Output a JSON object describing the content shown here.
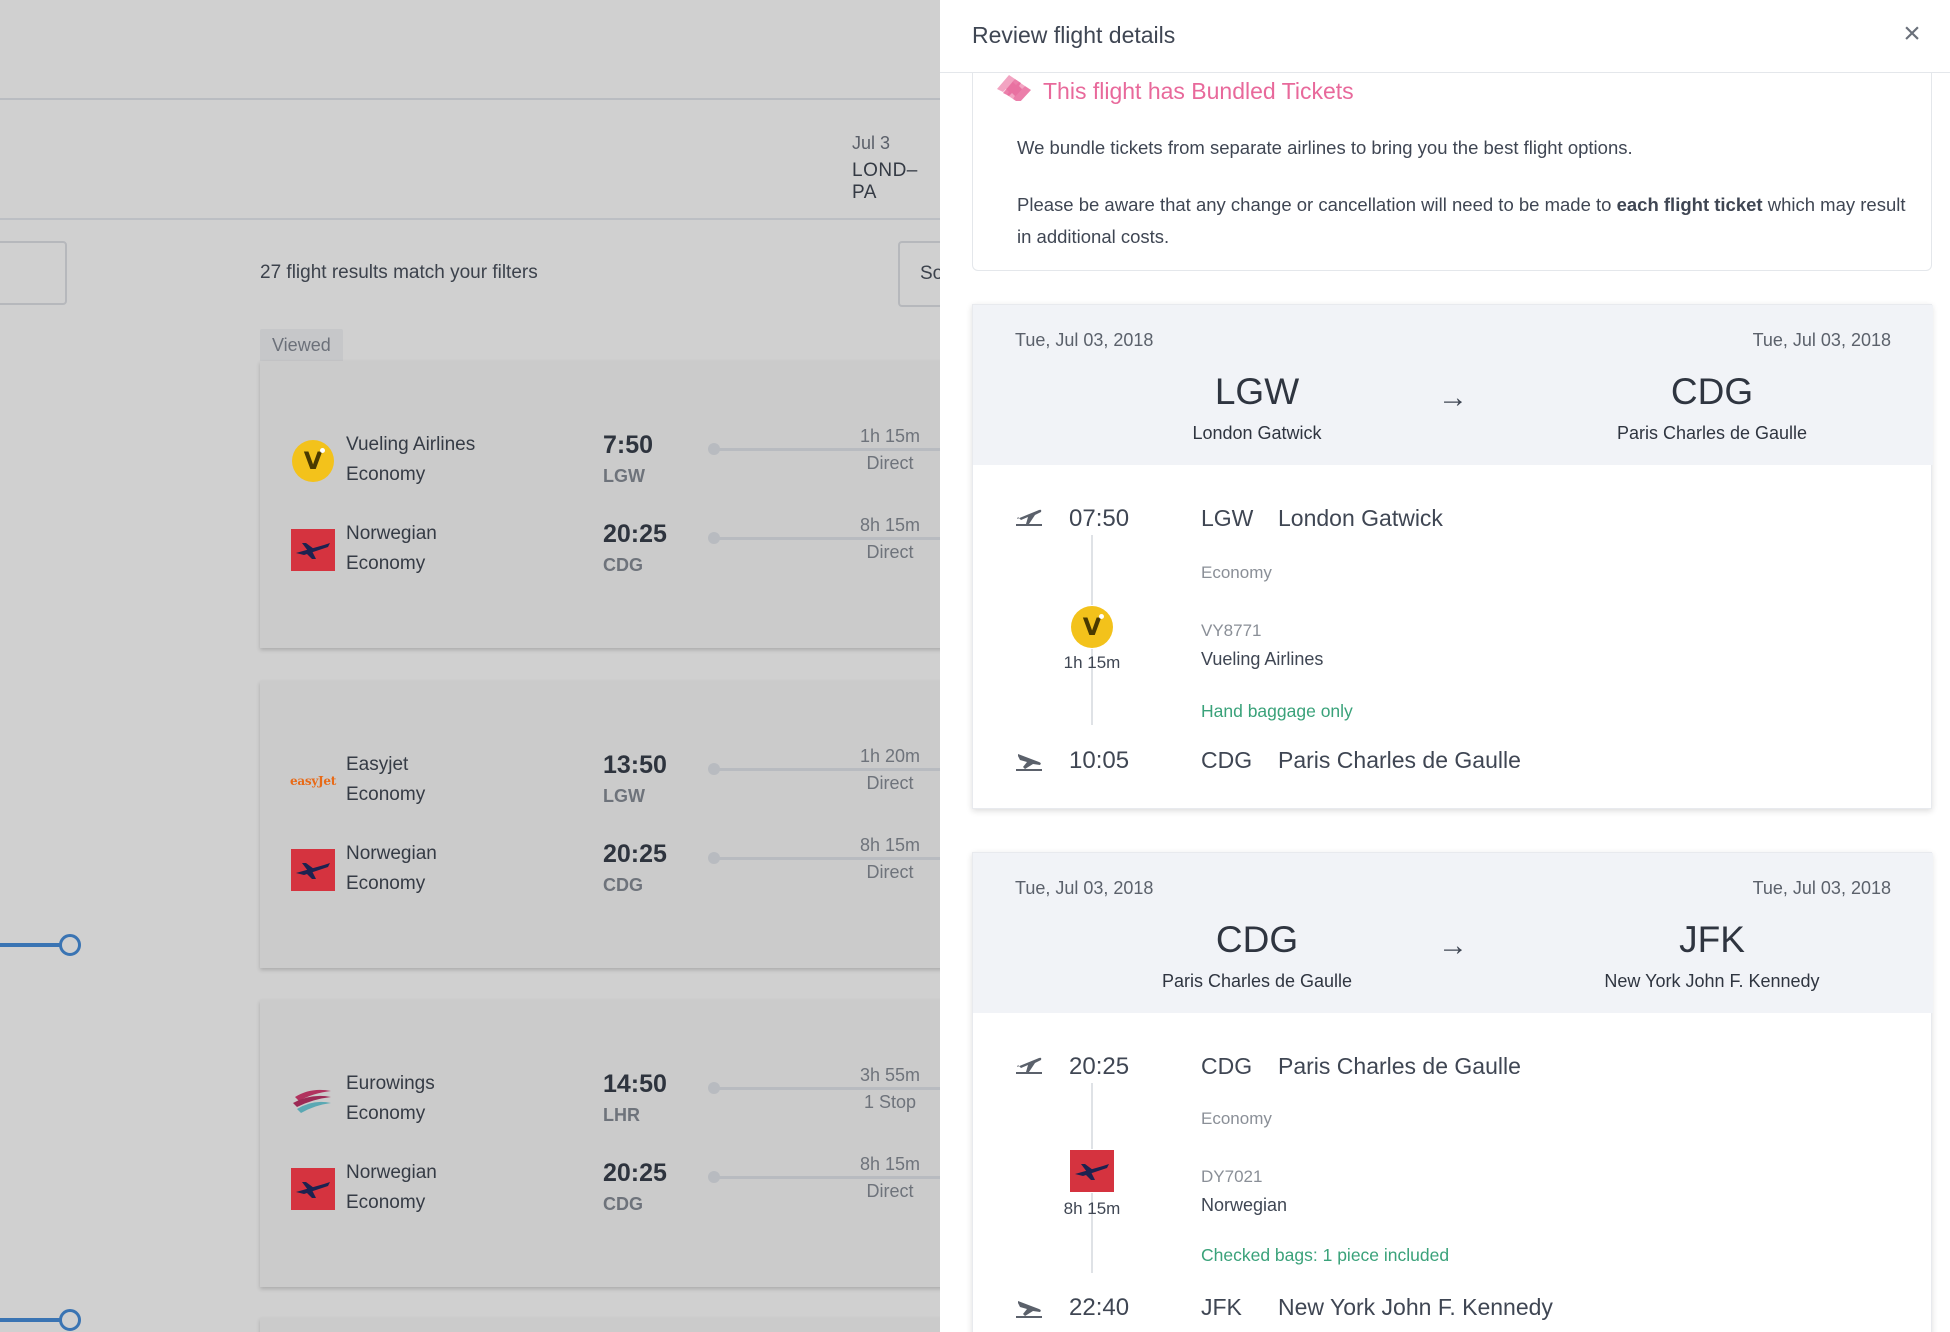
{
  "background": {
    "trip_date": "Jul 3",
    "trip_route": "LOND–PA",
    "results_count": "27 flight results match your filters",
    "sort_label": "So",
    "viewed_label": "Viewed",
    "slider_color": "#3a74b3",
    "cards": [
      {
        "legs": [
          {
            "logo": "vueling",
            "airline": "Vueling Airlines",
            "cabin": "Economy",
            "time": "7:50",
            "airport": "LGW",
            "duration": "1h 15m",
            "stops": "Direct"
          },
          {
            "logo": "norwegian",
            "airline": "Norwegian",
            "cabin": "Economy",
            "time": "20:25",
            "airport": "CDG",
            "duration": "8h 15m",
            "stops": "Direct"
          }
        ]
      },
      {
        "legs": [
          {
            "logo": "easyjet",
            "logo_text": "easyJet",
            "airline": "Easyjet",
            "cabin": "Economy",
            "time": "13:50",
            "airport": "LGW",
            "duration": "1h 20m",
            "stops": "Direct"
          },
          {
            "logo": "norwegian",
            "airline": "Norwegian",
            "cabin": "Economy",
            "time": "20:25",
            "airport": "CDG",
            "duration": "8h 15m",
            "stops": "Direct"
          }
        ]
      },
      {
        "legs": [
          {
            "logo": "eurowings",
            "airline": "Eurowings",
            "cabin": "Economy",
            "time": "14:50",
            "airport": "LHR",
            "duration": "3h 55m",
            "stops": "1 Stop"
          },
          {
            "logo": "norwegian",
            "airline": "Norwegian",
            "cabin": "Economy",
            "time": "20:25",
            "airport": "CDG",
            "duration": "8h 15m",
            "stops": "Direct"
          }
        ]
      }
    ]
  },
  "drawer": {
    "title": "Review flight details",
    "close_icon": "×",
    "bundle": {
      "title": "This flight has Bundled Tickets",
      "p1": "We bundle tickets from separate airlines to bring you the best flight options.",
      "p2_before": "Please be aware that any change or cancellation will need to be made to ",
      "p2_bold": "each flight ticket",
      "p2_after": " which may result in additional costs.",
      "accent_color": "#e8699b"
    },
    "segments": [
      {
        "date_from": "Tue, Jul 03, 2018",
        "date_to": "Tue, Jul 03, 2018",
        "from_code": "LGW",
        "from_name": "London Gatwick",
        "to_code": "CDG",
        "to_name": "Paris Charles de Gaulle",
        "arrow": "→",
        "depart_time": "07:50",
        "depart_code": "LGW",
        "depart_name": "London Gatwick",
        "cabin": "Economy",
        "airline_logo": "vueling",
        "duration": "1h 15m",
        "flight_no": "VY8771",
        "airline": "Vueling Airlines",
        "baggage": "Hand baggage only",
        "arrive_time": "10:05",
        "arrive_code": "CDG",
        "arrive_name": "Paris Charles de Gaulle"
      },
      {
        "date_from": "Tue, Jul 03, 2018",
        "date_to": "Tue, Jul 03, 2018",
        "from_code": "CDG",
        "from_name": "Paris Charles de Gaulle",
        "to_code": "JFK",
        "to_name": "New York John F. Kennedy",
        "arrow": "→",
        "depart_time": "20:25",
        "depart_code": "CDG",
        "depart_name": "Paris Charles de Gaulle",
        "cabin": "Economy",
        "airline_logo": "norwegian",
        "duration": "8h 15m",
        "flight_no": "DY7021",
        "airline": "Norwegian",
        "baggage": "Checked bags: 1 piece included",
        "arrive_time": "22:40",
        "arrive_code": "JFK",
        "arrive_name": "New York John F. Kennedy"
      }
    ]
  }
}
